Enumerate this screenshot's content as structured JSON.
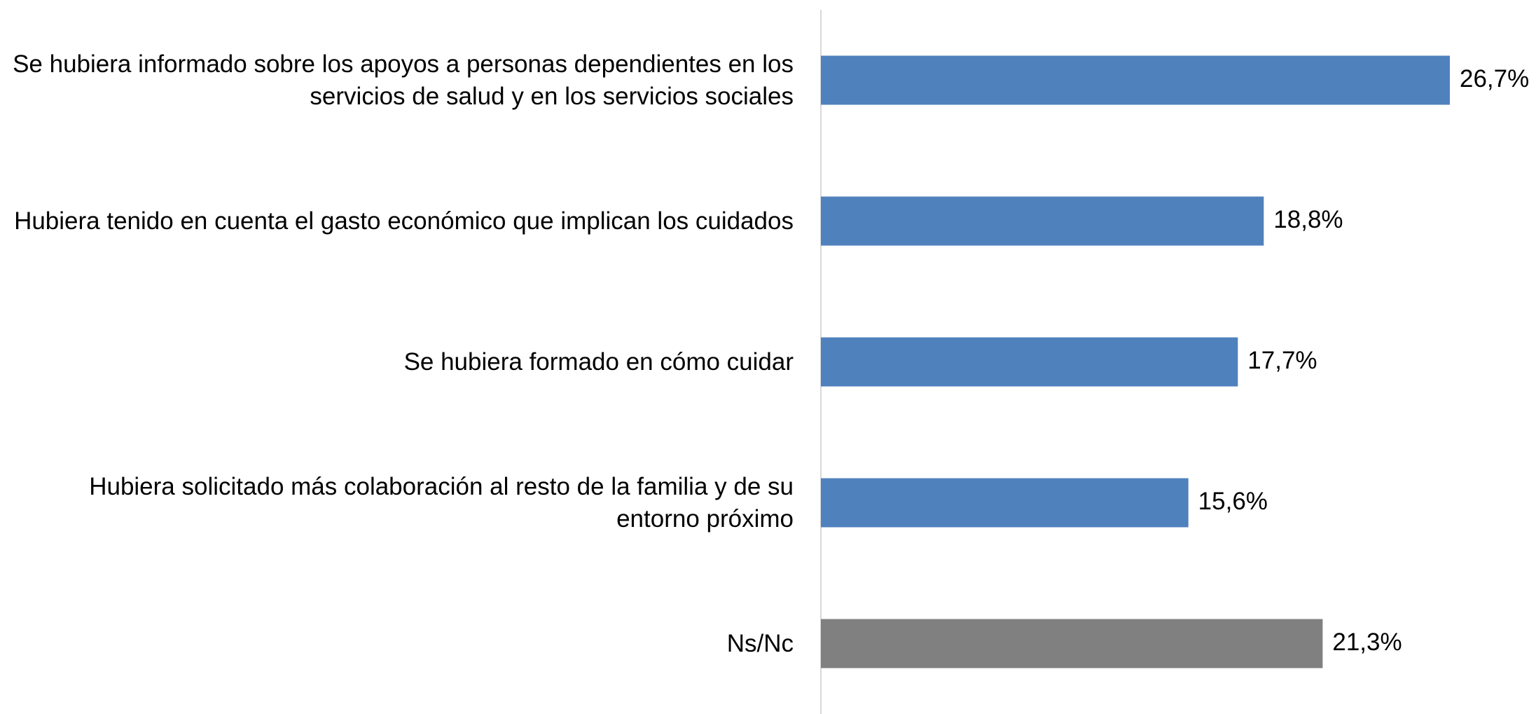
{
  "chart_data": {
    "type": "bar",
    "orientation": "horizontal",
    "categories": [
      "Se hubiera informado sobre los apoyos a personas dependientes en los servicios de salud y en los servicios sociales",
      "Hubiera tenido en cuenta el gasto económico que implican los cuidados",
      "Se hubiera formado en cómo cuidar",
      "Hubiera solicitado más colaboración al resto de la familia y de su entorno próximo",
      "Ns/Nc"
    ],
    "values": [
      26.7,
      18.8,
      17.7,
      15.6,
      21.3
    ],
    "value_labels": [
      "26,7%",
      "18,8%",
      "17,7%",
      "15,6%",
      "21,3%"
    ],
    "colors": [
      "#4f81bd",
      "#4f81bd",
      "#4f81bd",
      "#4f81bd",
      "#808080"
    ],
    "xlim": [
      0,
      30
    ]
  }
}
